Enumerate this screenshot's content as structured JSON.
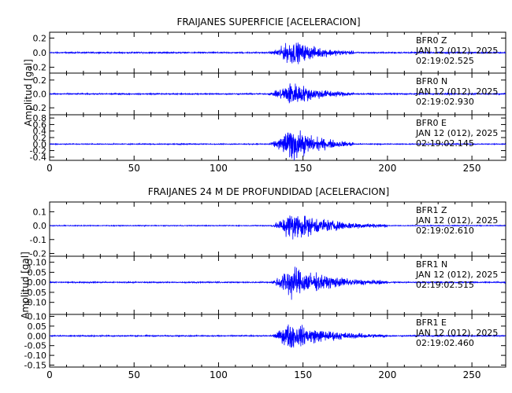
{
  "chart_data": [
    {
      "type": "line",
      "title": "FRAIJANES SUPERFICIE [ACELERACION]",
      "ylabel": "Amplitud [gal]",
      "xlabel": "",
      "xlim": [
        0,
        270
      ],
      "xticks": [
        "0",
        "50",
        "100",
        "150",
        "200",
        "250"
      ],
      "grid": false,
      "series": [
        {
          "name": "BFR0 Z",
          "annotation": [
            "BFR0   Z",
            "JAN 12 (012), 2025",
            "02:19:02.525"
          ],
          "ylim": [
            -0.28,
            0.28
          ],
          "yticks": [
            0.2,
            0.0,
            -0.2
          ],
          "ytick_labels": [
            "0.2",
            "0.0",
            "-0.2"
          ],
          "noise": 0.012,
          "peak": 0.25,
          "onset": 129,
          "peak_t": 143,
          "decay": 16,
          "end": 180
        },
        {
          "name": "BFR0 N",
          "annotation": [
            "BFR0   N",
            "JAN 12 (012), 2025",
            "02:19:02.930"
          ],
          "ylim": [
            -0.3,
            0.3
          ],
          "yticks": [
            0.2,
            0.0,
            -0.2
          ],
          "ytick_labels": [
            "0.2",
            "0.0",
            "-0.2"
          ],
          "noise": 0.012,
          "peak": 0.26,
          "onset": 129,
          "peak_t": 143,
          "decay": 16,
          "end": 180
        },
        {
          "name": "BFR0 E",
          "annotation": [
            "BFR0   E",
            "JAN 12 (012), 2025",
            "02:19:02.145"
          ],
          "ylim": [
            -0.5,
            0.9
          ],
          "yticks": [
            0.8,
            0.6,
            0.4,
            0.2,
            0.0,
            -0.2,
            -0.4
          ],
          "ytick_labels": [
            "0.8",
            "0.6",
            "0.4",
            "0.2",
            "0.0",
            "-0.2",
            "-0.4"
          ],
          "noise": 0.02,
          "peak": 0.75,
          "onset": 129,
          "peak_t": 143,
          "decay": 16,
          "end": 180
        }
      ]
    },
    {
      "type": "line",
      "title": "FRAIJANES 24 M DE PROFUNDIDAD [ACELERACION]",
      "ylabel": "Amplitud [gal]",
      "xlabel": "",
      "xlim": [
        0,
        270
      ],
      "xticks": [
        "0",
        "50",
        "100",
        "150",
        "200",
        "250"
      ],
      "grid": false,
      "series": [
        {
          "name": "BFR1 Z",
          "annotation": [
            "BFR1   Z",
            "JAN 12 (012), 2025",
            "02:19:02.610"
          ],
          "ylim": [
            -0.22,
            0.17
          ],
          "yticks": [
            0.1,
            0.0,
            -0.1,
            -0.2
          ],
          "ytick_labels": [
            "0.1",
            "0.0",
            "-0.1",
            "-0.2"
          ],
          "noise": 0.004,
          "peak": 0.16,
          "onset": 130,
          "peak_t": 143,
          "decay": 22,
          "end": 200
        },
        {
          "name": "BFR1 N",
          "annotation": [
            "BFR1   N",
            "JAN 12 (012), 2025",
            "02:19:02.515"
          ],
          "ylim": [
            -0.16,
            0.13
          ],
          "yticks": [
            0.1,
            0.05,
            0.0,
            -0.05,
            -0.1
          ],
          "ytick_labels": [
            "0.10",
            "0.05",
            "0.00",
            "-0.05",
            "-0.10"
          ],
          "noise": 0.004,
          "peak": 0.12,
          "onset": 130,
          "peak_t": 142,
          "decay": 22,
          "end": 200
        },
        {
          "name": "BFR1 E",
          "annotation": [
            "BFR1   E",
            "JAN 12 (012), 2025",
            "02:19:02.460"
          ],
          "ylim": [
            -0.16,
            0.11
          ],
          "yticks": [
            0.1,
            0.05,
            0.0,
            -0.05,
            -0.1,
            -0.15
          ],
          "ytick_labels": [
            "0.10",
            "0.05",
            "0.00",
            "-0.05",
            "-0.10",
            "-0.15"
          ],
          "noise": 0.004,
          "peak": 0.1,
          "onset": 130,
          "peak_t": 142,
          "decay": 22,
          "end": 200
        }
      ]
    }
  ],
  "colors": {
    "trace": "#0000ff",
    "axes": "#000000"
  }
}
